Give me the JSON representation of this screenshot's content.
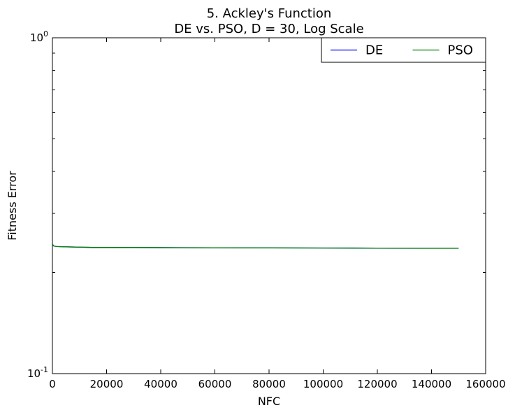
{
  "chart_data": {
    "type": "line",
    "title": "5.   Ackley's Function",
    "subtitle": "DE vs. PSO, D = 30, Log Scale",
    "xlabel": "NFC",
    "ylabel": "Fitness Error",
    "xlim": [
      0,
      160000
    ],
    "ylim": [
      0.1,
      1
    ],
    "yscale": "log",
    "xticks": [
      {
        "value": 0,
        "label": "0"
      },
      {
        "value": 20000,
        "label": "20000"
      },
      {
        "value": 40000,
        "label": "40000"
      },
      {
        "value": 60000,
        "label": "60000"
      },
      {
        "value": 80000,
        "label": "80000"
      },
      {
        "value": 100000,
        "label": "100000"
      },
      {
        "value": 120000,
        "label": "120000"
      },
      {
        "value": 140000,
        "label": "140000"
      },
      {
        "value": 160000,
        "label": "160000"
      }
    ],
    "yticks": [
      {
        "value": 0.1,
        "base": "10",
        "exp": "-1"
      },
      {
        "value": 1,
        "base": "10",
        "exp": "0"
      }
    ],
    "grid": false,
    "legend_position": "top-right",
    "series": [
      {
        "name": "DE",
        "color": "#0000ff",
        "x": [
          0,
          500,
          1500,
          5000,
          10000,
          15000,
          20000,
          40000,
          60000,
          80000,
          100000,
          120000,
          140000,
          150000
        ],
        "y": [
          0.243,
          0.24,
          0.239,
          0.2385,
          0.238,
          0.2375,
          0.2375,
          0.2372,
          0.237,
          0.2368,
          0.2366,
          0.2364,
          0.2362,
          0.2362
        ]
      },
      {
        "name": "PSO",
        "color": "#008000",
        "x": [
          0,
          500,
          1500,
          5000,
          10000,
          15000,
          20000,
          40000,
          60000,
          80000,
          100000,
          120000,
          140000,
          150000
        ],
        "y": [
          0.243,
          0.24,
          0.239,
          0.2385,
          0.238,
          0.2375,
          0.2375,
          0.2372,
          0.237,
          0.2368,
          0.2366,
          0.2364,
          0.2362,
          0.2362
        ]
      }
    ]
  }
}
